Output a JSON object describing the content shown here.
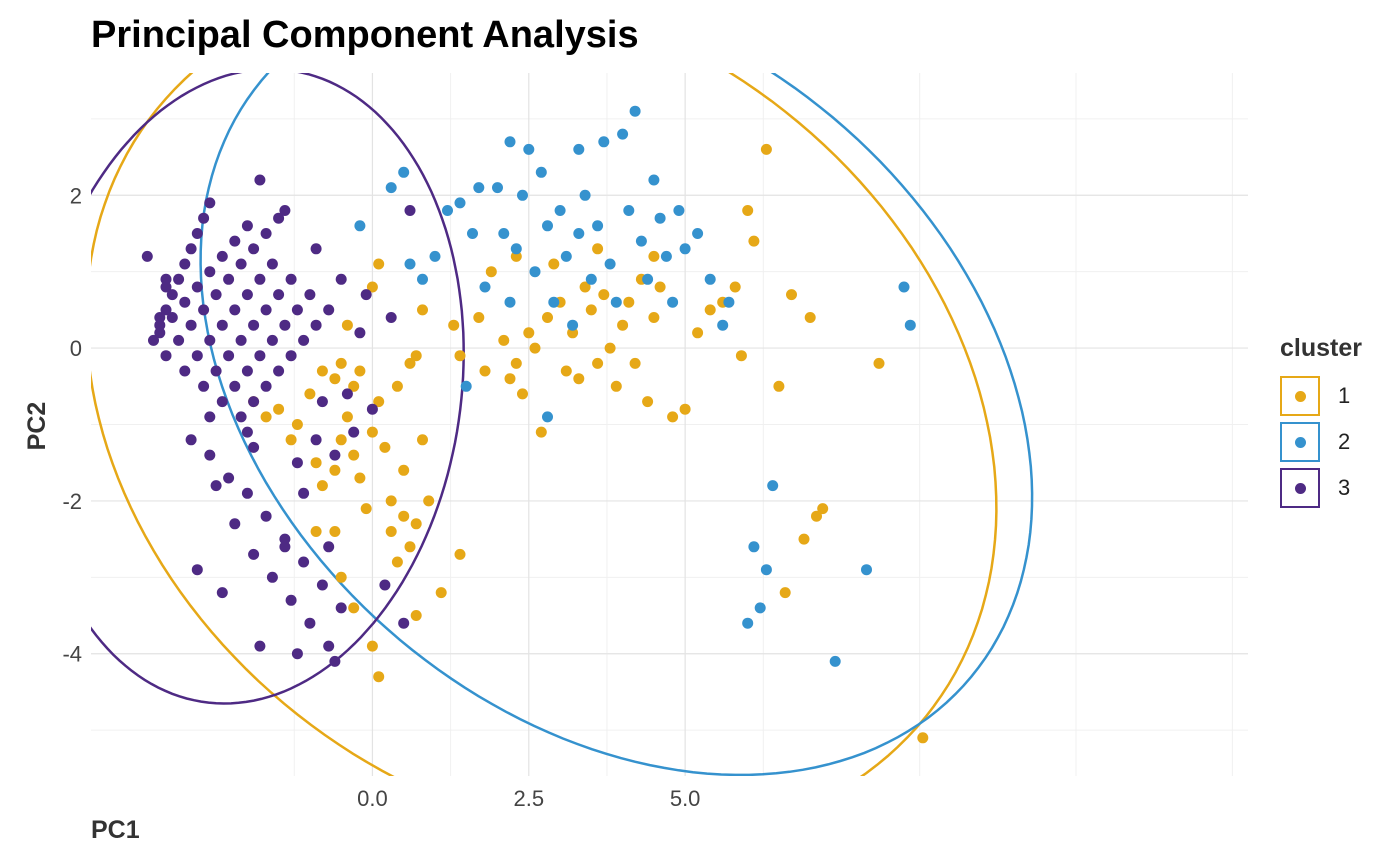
{
  "chart_data": {
    "type": "scatter",
    "title": "Principal Component Analysis",
    "xlabel": "PC1",
    "ylabel": "PC2",
    "xlim": [
      -4.5,
      14.0
    ],
    "ylim": [
      -5.6,
      3.6
    ],
    "xticks": [
      0.0,
      2.5,
      5.0
    ],
    "xtick_labels": [
      "0.0",
      "2.5",
      "5.0"
    ],
    "yticks": [
      2,
      0,
      -2,
      -4
    ],
    "ytick_labels": [
      "2",
      "0",
      "-2",
      "-4"
    ],
    "grid": true,
    "legend": {
      "title": "cluster",
      "placement": "right"
    },
    "series": [
      {
        "name": "1",
        "color": "#E6A817",
        "ellipse": {
          "cx": 2.7,
          "cy": -0.85,
          "rx": 7.5,
          "ry": 5.3,
          "angle_deg": -20
        },
        "points": [
          [
            -1.9,
            -0.7
          ],
          [
            -1.7,
            -0.9
          ],
          [
            -1.5,
            -0.8
          ],
          [
            -1.3,
            -1.2
          ],
          [
            -1.2,
            -1.0
          ],
          [
            -1.0,
            -0.6
          ],
          [
            -0.9,
            -1.5
          ],
          [
            -0.8,
            -1.8
          ],
          [
            -0.6,
            -1.6
          ],
          [
            -0.5,
            -1.2
          ],
          [
            -0.4,
            -0.9
          ],
          [
            -0.3,
            -1.4
          ],
          [
            -0.2,
            -1.7
          ],
          [
            0.0,
            -1.1
          ],
          [
            0.1,
            -0.7
          ],
          [
            0.2,
            -1.3
          ],
          [
            0.3,
            -2.0
          ],
          [
            0.5,
            -1.6
          ],
          [
            0.7,
            -2.3
          ],
          [
            0.9,
            -2.0
          ],
          [
            -0.8,
            -0.3
          ],
          [
            -0.6,
            -0.4
          ],
          [
            -0.5,
            -0.2
          ],
          [
            -0.3,
            -0.5
          ],
          [
            -0.2,
            -0.3
          ],
          [
            0.4,
            -0.5
          ],
          [
            0.6,
            -0.2
          ],
          [
            0.7,
            -0.1
          ],
          [
            -0.4,
            0.3
          ],
          [
            0.0,
            0.8
          ],
          [
            0.1,
            1.1
          ],
          [
            0.8,
            0.5
          ],
          [
            -0.6,
            -2.4
          ],
          [
            -0.5,
            -3.0
          ],
          [
            -0.3,
            -3.4
          ],
          [
            0.0,
            -3.9
          ],
          [
            0.1,
            -4.3
          ],
          [
            0.4,
            -2.8
          ],
          [
            0.6,
            -2.6
          ],
          [
            0.7,
            -3.5
          ],
          [
            -0.9,
            -2.4
          ],
          [
            -0.1,
            -2.1
          ],
          [
            0.3,
            -2.4
          ],
          [
            0.5,
            -2.2
          ],
          [
            0.8,
            -1.2
          ],
          [
            1.1,
            -3.2
          ],
          [
            1.4,
            -2.7
          ],
          [
            1.3,
            0.3
          ],
          [
            1.4,
            -0.1
          ],
          [
            1.7,
            0.4
          ],
          [
            1.8,
            -0.3
          ],
          [
            2.1,
            0.1
          ],
          [
            2.2,
            -0.4
          ],
          [
            2.3,
            -0.2
          ],
          [
            2.4,
            -0.6
          ],
          [
            2.5,
            0.2
          ],
          [
            2.6,
            0.0
          ],
          [
            2.7,
            -1.1
          ],
          [
            2.8,
            0.4
          ],
          [
            3.0,
            0.6
          ],
          [
            3.1,
            -0.3
          ],
          [
            3.2,
            0.2
          ],
          [
            3.3,
            -0.4
          ],
          [
            3.4,
            0.8
          ],
          [
            3.5,
            0.5
          ],
          [
            3.6,
            -0.2
          ],
          [
            3.7,
            0.7
          ],
          [
            3.8,
            0.0
          ],
          [
            3.9,
            -0.5
          ],
          [
            4.0,
            0.3
          ],
          [
            4.1,
            0.6
          ],
          [
            4.2,
            -0.2
          ],
          [
            4.3,
            0.9
          ],
          [
            4.4,
            -0.7
          ],
          [
            4.5,
            0.4
          ],
          [
            4.6,
            0.8
          ],
          [
            4.8,
            -0.9
          ],
          [
            5.0,
            -0.8
          ],
          [
            5.2,
            0.2
          ],
          [
            5.4,
            0.5
          ],
          [
            5.6,
            0.6
          ],
          [
            5.8,
            0.8
          ],
          [
            5.9,
            -0.1
          ],
          [
            6.0,
            1.8
          ],
          [
            6.1,
            1.4
          ],
          [
            6.3,
            2.6
          ],
          [
            6.5,
            -0.5
          ],
          [
            6.7,
            0.7
          ],
          [
            7.0,
            0.4
          ],
          [
            7.1,
            -2.2
          ],
          [
            7.2,
            -2.1
          ],
          [
            6.9,
            -2.5
          ],
          [
            6.6,
            -3.2
          ],
          [
            8.1,
            -0.2
          ],
          [
            8.8,
            -5.1
          ],
          [
            2.3,
            1.2
          ],
          [
            1.9,
            1.0
          ],
          [
            2.9,
            1.1
          ],
          [
            3.6,
            1.3
          ],
          [
            4.5,
            1.2
          ]
        ]
      },
      {
        "name": "2",
        "color": "#3592CE",
        "ellipse": {
          "cx": 3.9,
          "cy": -0.4,
          "rx": 7.0,
          "ry": 4.7,
          "angle_deg": -25
        },
        "points": [
          [
            -0.2,
            1.6
          ],
          [
            0.3,
            2.1
          ],
          [
            0.5,
            2.3
          ],
          [
            0.6,
            1.1
          ],
          [
            0.8,
            0.9
          ],
          [
            1.0,
            1.2
          ],
          [
            1.2,
            1.8
          ],
          [
            1.4,
            1.9
          ],
          [
            1.6,
            1.5
          ],
          [
            1.8,
            0.8
          ],
          [
            2.0,
            2.1
          ],
          [
            2.1,
            1.5
          ],
          [
            2.2,
            0.6
          ],
          [
            2.3,
            1.3
          ],
          [
            2.4,
            2.0
          ],
          [
            2.5,
            2.6
          ],
          [
            2.6,
            1.0
          ],
          [
            2.7,
            2.3
          ],
          [
            2.8,
            1.6
          ],
          [
            2.9,
            0.6
          ],
          [
            3.0,
            1.8
          ],
          [
            3.1,
            1.2
          ],
          [
            3.2,
            0.3
          ],
          [
            3.3,
            1.5
          ],
          [
            3.4,
            2.0
          ],
          [
            3.5,
            0.9
          ],
          [
            3.6,
            1.6
          ],
          [
            3.7,
            2.7
          ],
          [
            3.8,
            1.1
          ],
          [
            3.9,
            0.6
          ],
          [
            4.0,
            2.8
          ],
          [
            4.1,
            1.8
          ],
          [
            4.2,
            3.1
          ],
          [
            4.3,
            1.4
          ],
          [
            4.4,
            0.9
          ],
          [
            4.5,
            2.2
          ],
          [
            4.6,
            1.7
          ],
          [
            4.7,
            1.2
          ],
          [
            4.8,
            0.6
          ],
          [
            4.9,
            1.8
          ],
          [
            5.0,
            1.3
          ],
          [
            5.2,
            1.5
          ],
          [
            5.4,
            0.9
          ],
          [
            5.6,
            0.3
          ],
          [
            5.7,
            0.6
          ],
          [
            1.5,
            -0.5
          ],
          [
            2.8,
            -0.9
          ],
          [
            6.0,
            -3.6
          ],
          [
            6.1,
            -2.6
          ],
          [
            6.2,
            -3.4
          ],
          [
            6.3,
            -2.9
          ],
          [
            6.4,
            -1.8
          ],
          [
            7.4,
            -4.1
          ],
          [
            7.9,
            -2.9
          ],
          [
            8.5,
            0.8
          ],
          [
            8.6,
            0.3
          ],
          [
            1.7,
            2.1
          ],
          [
            2.2,
            2.7
          ],
          [
            3.3,
            2.6
          ]
        ]
      },
      {
        "name": "3",
        "color": "#4E2A84",
        "ellipse": {
          "cx": -2.0,
          "cy": -0.5,
          "rx": 3.4,
          "ry": 4.2,
          "angle_deg": -15
        },
        "points": [
          [
            -3.5,
            0.1
          ],
          [
            -3.4,
            0.3
          ],
          [
            -3.3,
            0.5
          ],
          [
            -3.2,
            0.7
          ],
          [
            -3.1,
            0.9
          ],
          [
            -3.0,
            1.1
          ],
          [
            -2.9,
            1.3
          ],
          [
            -2.8,
            1.5
          ],
          [
            -2.7,
            1.7
          ],
          [
            -2.6,
            1.9
          ],
          [
            -3.4,
            0.2
          ],
          [
            -3.2,
            0.4
          ],
          [
            -3.0,
            0.6
          ],
          [
            -2.8,
            0.8
          ],
          [
            -2.6,
            1.0
          ],
          [
            -2.4,
            1.2
          ],
          [
            -2.2,
            1.4
          ],
          [
            -2.0,
            1.6
          ],
          [
            -3.3,
            -0.1
          ],
          [
            -3.1,
            0.1
          ],
          [
            -2.9,
            0.3
          ],
          [
            -2.7,
            0.5
          ],
          [
            -2.5,
            0.7
          ],
          [
            -2.3,
            0.9
          ],
          [
            -2.1,
            1.1
          ],
          [
            -1.9,
            1.3
          ],
          [
            -1.7,
            1.5
          ],
          [
            -1.5,
            1.7
          ],
          [
            -3.0,
            -0.3
          ],
          [
            -2.8,
            -0.1
          ],
          [
            -2.6,
            0.1
          ],
          [
            -2.4,
            0.3
          ],
          [
            -2.2,
            0.5
          ],
          [
            -2.0,
            0.7
          ],
          [
            -1.8,
            0.9
          ],
          [
            -1.6,
            1.1
          ],
          [
            -2.7,
            -0.5
          ],
          [
            -2.5,
            -0.3
          ],
          [
            -2.3,
            -0.1
          ],
          [
            -2.1,
            0.1
          ],
          [
            -1.9,
            0.3
          ],
          [
            -1.7,
            0.5
          ],
          [
            -1.5,
            0.7
          ],
          [
            -1.3,
            0.9
          ],
          [
            -2.4,
            -0.7
          ],
          [
            -2.2,
            -0.5
          ],
          [
            -2.0,
            -0.3
          ],
          [
            -1.8,
            -0.1
          ],
          [
            -1.6,
            0.1
          ],
          [
            -1.4,
            0.3
          ],
          [
            -1.2,
            0.5
          ],
          [
            -1.0,
            0.7
          ],
          [
            -2.1,
            -0.9
          ],
          [
            -1.9,
            -0.7
          ],
          [
            -1.7,
            -0.5
          ],
          [
            -1.5,
            -0.3
          ],
          [
            -1.3,
            -0.1
          ],
          [
            -1.1,
            0.1
          ],
          [
            -0.9,
            0.3
          ],
          [
            -0.7,
            0.5
          ],
          [
            -3.6,
            1.2
          ],
          [
            -3.3,
            0.9
          ],
          [
            -2.9,
            -1.2
          ],
          [
            -2.6,
            -1.4
          ],
          [
            -2.3,
            -1.7
          ],
          [
            -2.0,
            -1.9
          ],
          [
            -1.7,
            -2.2
          ],
          [
            -1.4,
            -2.5
          ],
          [
            -1.1,
            -2.8
          ],
          [
            -0.8,
            -3.1
          ],
          [
            -0.5,
            -3.4
          ],
          [
            -2.5,
            -1.8
          ],
          [
            -2.2,
            -2.3
          ],
          [
            -1.9,
            -2.7
          ],
          [
            -1.6,
            -3.0
          ],
          [
            -1.3,
            -3.3
          ],
          [
            -1.0,
            -3.6
          ],
          [
            -0.7,
            -3.9
          ],
          [
            -2.8,
            -2.9
          ],
          [
            -2.4,
            -3.2
          ],
          [
            -1.8,
            -3.9
          ],
          [
            -1.2,
            -4.0
          ],
          [
            -0.6,
            -4.1
          ],
          [
            0.2,
            -3.1
          ],
          [
            0.5,
            -3.6
          ],
          [
            -1.2,
            -1.5
          ],
          [
            -0.9,
            -1.2
          ],
          [
            -0.6,
            -1.4
          ],
          [
            -0.3,
            -1.1
          ],
          [
            0.0,
            -0.8
          ],
          [
            -0.8,
            -0.7
          ],
          [
            -0.4,
            -0.6
          ],
          [
            -1.8,
            2.2
          ],
          [
            -1.4,
            1.8
          ],
          [
            -0.9,
            1.3
          ],
          [
            -0.5,
            0.9
          ],
          [
            -0.1,
            0.7
          ],
          [
            0.3,
            0.4
          ],
          [
            0.6,
            1.8
          ],
          [
            -0.2,
            0.2
          ],
          [
            -2.6,
            -0.9
          ],
          [
            -1.1,
            -1.9
          ],
          [
            -1.4,
            -2.6
          ],
          [
            -0.7,
            -2.6
          ],
          [
            -1.9,
            -1.3
          ],
          [
            -3.4,
            0.4
          ],
          [
            -3.3,
            0.8
          ],
          [
            -2.0,
            -1.1
          ]
        ]
      }
    ]
  }
}
